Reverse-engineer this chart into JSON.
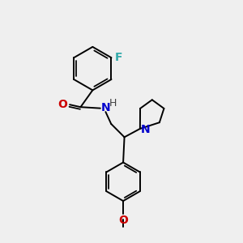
{
  "background_color": "#efefef",
  "bond_color": "#000000",
  "line_width": 1.4,
  "atom_labels": {
    "F": {
      "color": "#33aaaa",
      "fontsize": 10,
      "fontweight": "bold"
    },
    "O": {
      "color": "#cc0000",
      "fontsize": 10,
      "fontweight": "bold"
    },
    "N_amide": {
      "color": "#0000cc",
      "fontsize": 10,
      "fontweight": "bold"
    },
    "H": {
      "color": "#404040",
      "fontsize": 9,
      "fontweight": "normal"
    },
    "N_pyrr": {
      "color": "#0000cc",
      "fontsize": 10,
      "fontweight": "bold"
    }
  }
}
